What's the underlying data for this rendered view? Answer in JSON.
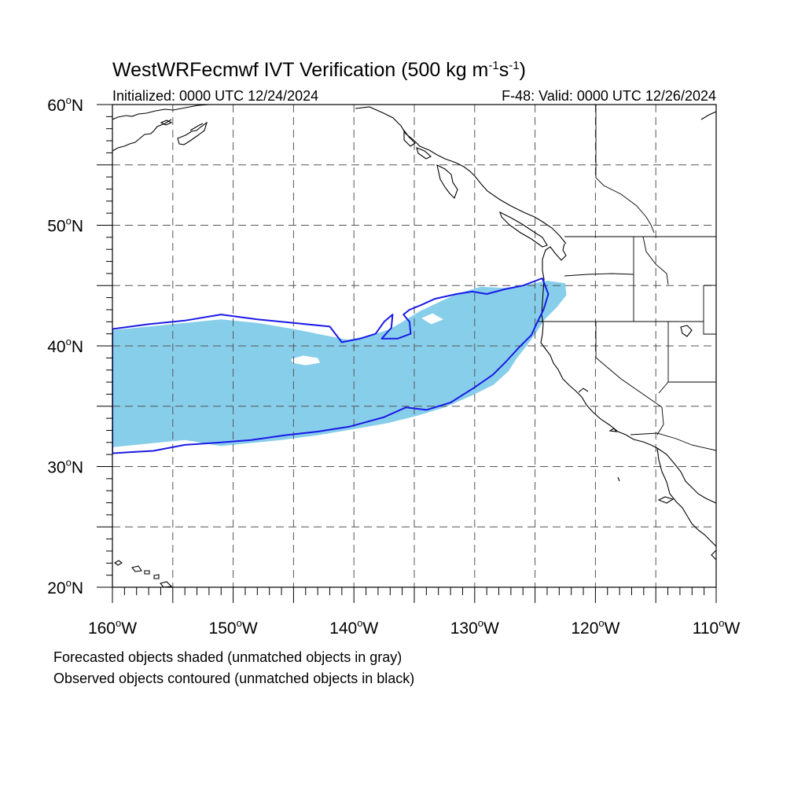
{
  "title": {
    "prefix": "WestWRFecmwf IVT Verification (500 kg m",
    "exp1": "-1",
    "mid": "s",
    "exp2": "-1",
    "suffix": ")"
  },
  "subtitle_left": "Initialized: 0000 UTC 12/24/2024",
  "subtitle_right": "F-48: Valid: 0000 UTC 12/26/2024",
  "lat_labels": [
    {
      "deg": "60",
      "hemi": "N",
      "lat": 60
    },
    {
      "deg": "50",
      "hemi": "N",
      "lat": 50
    },
    {
      "deg": "40",
      "hemi": "N",
      "lat": 40
    },
    {
      "deg": "30",
      "hemi": "N",
      "lat": 30
    },
    {
      "deg": "20",
      "hemi": "N",
      "lat": 20
    }
  ],
  "lon_labels": [
    {
      "deg": "160",
      "hemi": "W",
      "lon": -160
    },
    {
      "deg": "150",
      "hemi": "W",
      "lon": -150
    },
    {
      "deg": "140",
      "hemi": "W",
      "lon": -140
    },
    {
      "deg": "130",
      "hemi": "W",
      "lon": -130
    },
    {
      "deg": "120",
      "hemi": "W",
      "lon": -120
    },
    {
      "deg": "110",
      "hemi": "W",
      "lon": -110
    }
  ],
  "notes": {
    "line1": "Forecasted objects shaded (unmatched objects in gray)",
    "line2": "Observed objects contoured (unmatched objects in black)"
  },
  "map": {
    "extent": {
      "lon_min": -160,
      "lon_max": -110,
      "lat_min": 20,
      "lat_max": 60
    },
    "grid_lons": [
      -155,
      -150,
      -145,
      -140,
      -135,
      -130,
      -125,
      -120,
      -115
    ],
    "grid_lats": [
      25,
      30,
      35,
      40,
      45,
      50,
      55
    ],
    "colors": {
      "forecast_fill": "#87ceeb",
      "observed_contour": "#1a1ae6",
      "coastline": "#000000",
      "gridline": "#555555"
    },
    "forecast_object": [
      [
        -160,
        41.3
      ],
      [
        -157,
        41.6
      ],
      [
        -154,
        41.9
      ],
      [
        -151,
        42.2
      ],
      [
        -148,
        41.9
      ],
      [
        -145,
        41.4
      ],
      [
        -142.5,
        40.9
      ],
      [
        -140.5,
        40.5
      ],
      [
        -138.5,
        40.9
      ],
      [
        -137,
        41.4
      ],
      [
        -135.8,
        42.1
      ],
      [
        -134.5,
        42.9
      ],
      [
        -133,
        43.6
      ],
      [
        -131.5,
        44.3
      ],
      [
        -129.5,
        44.9
      ],
      [
        -127.5,
        44.8
      ],
      [
        -125.5,
        45.1
      ],
      [
        -124,
        45.4
      ],
      [
        -122.5,
        45.2
      ],
      [
        -122.4,
        44.2
      ],
      [
        -123.2,
        43.2
      ],
      [
        -124.2,
        42.2
      ],
      [
        -124.9,
        41.1
      ],
      [
        -125.7,
        40.0
      ],
      [
        -126.5,
        39.0
      ],
      [
        -127.2,
        37.9
      ],
      [
        -128.4,
        36.8
      ],
      [
        -130.2,
        35.9
      ],
      [
        -132.5,
        34.9
      ],
      [
        -134.8,
        34.2
      ],
      [
        -137.2,
        33.6
      ],
      [
        -140,
        33.1
      ],
      [
        -143,
        32.6
      ],
      [
        -146,
        32.2
      ],
      [
        -149,
        31.9
      ],
      [
        -151,
        31.7
      ],
      [
        -154,
        32.2
      ],
      [
        -157,
        31.9
      ],
      [
        -160,
        31.6
      ]
    ],
    "forecast_holes": [
      [
        [
          -145.2,
          38.9
        ],
        [
          -144.2,
          39.2
        ],
        [
          -143.0,
          39.0
        ],
        [
          -142.8,
          38.6
        ],
        [
          -144.0,
          38.4
        ],
        [
          -145.1,
          38.6
        ]
      ],
      [
        [
          -134.4,
          42.3
        ],
        [
          -133.5,
          42.7
        ],
        [
          -132.6,
          42.2
        ],
        [
          -133.6,
          41.8
        ]
      ]
    ],
    "observed_object": [
      [
        -160,
        41.4
      ],
      [
        -157,
        41.8
      ],
      [
        -154,
        42.1
      ],
      [
        -151,
        42.6
      ],
      [
        -148,
        42.2
      ],
      [
        -145,
        41.9
      ],
      [
        -142,
        41.6
      ],
      [
        -141,
        40.3
      ],
      [
        -139.5,
        40.6
      ],
      [
        -138.2,
        41.0
      ],
      [
        -137.5,
        42.0
      ],
      [
        -136.8,
        42.6
      ],
      [
        -136.9,
        41.5
      ],
      [
        -137.7,
        40.6
      ],
      [
        -136.4,
        40.6
      ],
      [
        -135.3,
        41.0
      ],
      [
        -135.4,
        42.0
      ],
      [
        -135.9,
        42.6
      ],
      [
        -135.4,
        43.0
      ],
      [
        -134.4,
        43.4
      ],
      [
        -133.3,
        43.9
      ],
      [
        -131.5,
        44.3
      ],
      [
        -130.2,
        44.5
      ],
      [
        -129,
        44.3
      ],
      [
        -127.5,
        44.7
      ],
      [
        -126,
        45.0
      ],
      [
        -124.4,
        45.6
      ],
      [
        -123.9,
        44.3
      ],
      [
        -124.3,
        43.0
      ],
      [
        -124.8,
        42.0
      ],
      [
        -125.3,
        40.9
      ],
      [
        -126.3,
        39.9
      ],
      [
        -127.4,
        38.7
      ],
      [
        -128.5,
        37.6
      ],
      [
        -130.1,
        36.5
      ],
      [
        -132,
        35.3
      ],
      [
        -134,
        34.7
      ],
      [
        -135.7,
        34.9
      ],
      [
        -137.5,
        34.1
      ],
      [
        -140.4,
        33.3
      ],
      [
        -143,
        32.9
      ],
      [
        -145.7,
        32.6
      ],
      [
        -148.5,
        32.2
      ],
      [
        -151,
        32.0
      ],
      [
        -154,
        31.8
      ],
      [
        -156.6,
        31.3
      ],
      [
        -158.5,
        31.2
      ],
      [
        -160,
        31.1
      ]
    ]
  }
}
